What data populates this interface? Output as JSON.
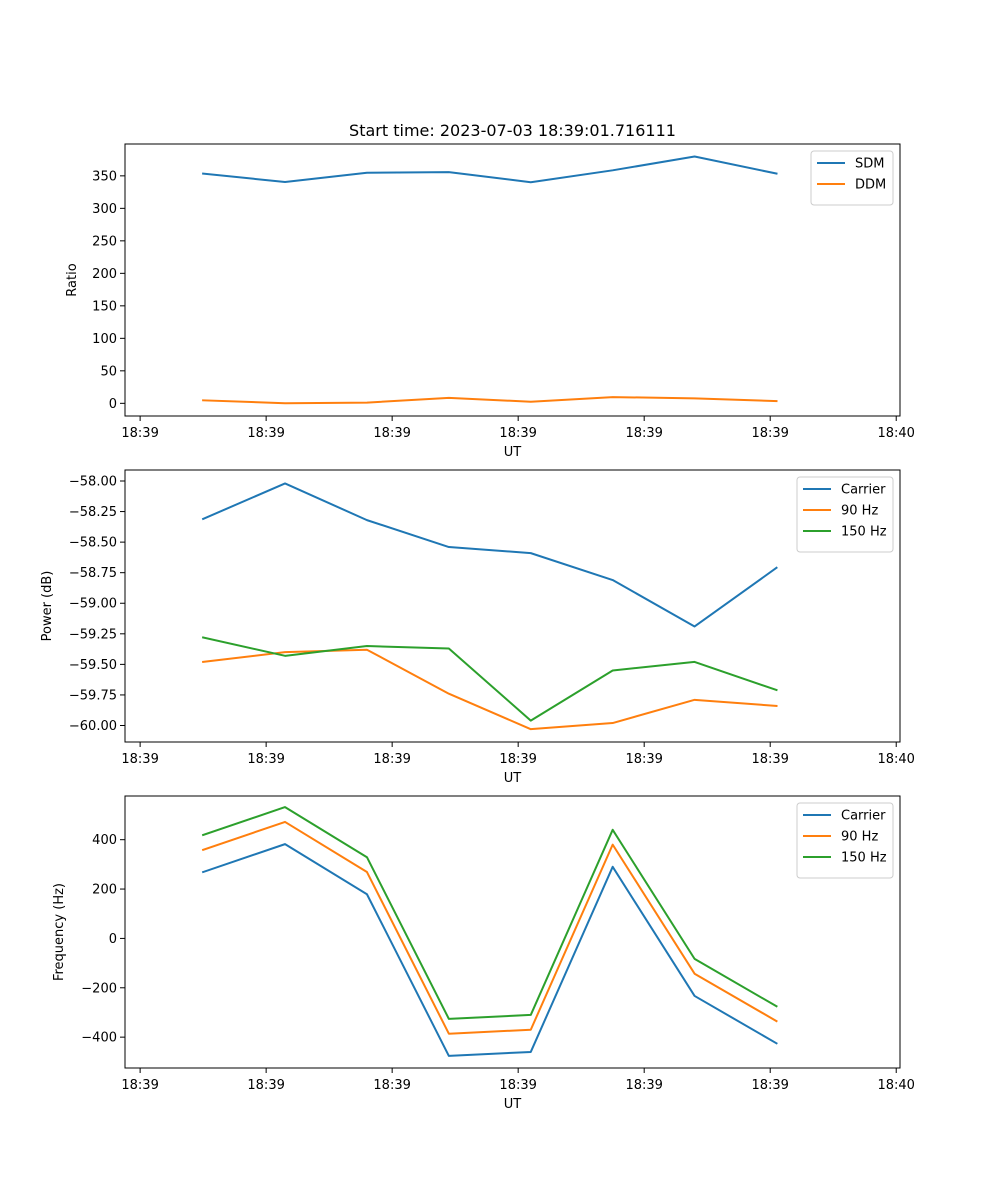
{
  "figure_title": "Start time: 2023-07-03 18:39:01.716111",
  "chart_data": [
    {
      "type": "line",
      "title": "Start time: 2023-07-03 18:39:01.716111",
      "xlabel": "UT",
      "ylabel": "Ratio",
      "x": [
        0.5,
        1.15,
        1.8,
        2.45,
        3.1,
        3.75,
        4.4,
        5.05
      ],
      "xlim": [
        -0.12,
        6.03
      ],
      "x_ticks": [
        0,
        1,
        2,
        3,
        4,
        5,
        6
      ],
      "x_tick_labels": [
        "18:39",
        "18:39",
        "18:39",
        "18:39",
        "18:39",
        "18:39",
        "18:40"
      ],
      "ylim": [
        -19.5,
        399
      ],
      "y_ticks": [
        0,
        50,
        100,
        150,
        200,
        250,
        300,
        350
      ],
      "y_tick_labels": [
        "0",
        "50",
        "100",
        "150",
        "200",
        "250",
        "300",
        "350"
      ],
      "legend_position": "upper right",
      "series": [
        {
          "name": "SDM",
          "color": "#1f77b4",
          "values": [
            353.5,
            340.5,
            354.8,
            355.8,
            340.2,
            358.5,
            379.8,
            353.5
          ]
        },
        {
          "name": "DDM",
          "color": "#ff7f0e",
          "values": [
            4.6,
            0.2,
            1.1,
            8.3,
            2.5,
            9.6,
            7.7,
            3.4
          ]
        }
      ]
    },
    {
      "type": "line",
      "title": "",
      "xlabel": "UT",
      "ylabel": "Power (dB)",
      "x": [
        0.5,
        1.15,
        1.8,
        2.45,
        3.1,
        3.75,
        4.4,
        5.05
      ],
      "xlim": [
        -0.12,
        6.03
      ],
      "x_ticks": [
        0,
        1,
        2,
        3,
        4,
        5,
        6
      ],
      "x_tick_labels": [
        "18:39",
        "18:39",
        "18:39",
        "18:39",
        "18:39",
        "18:39",
        "18:40"
      ],
      "ylim": [
        -60.135,
        -57.91
      ],
      "y_ticks": [
        -60.0,
        -59.75,
        -59.5,
        -59.25,
        -59.0,
        -58.75,
        -58.5,
        -58.25,
        -58.0
      ],
      "y_tick_labels": [
        "−60.00",
        "−59.75",
        "−59.50",
        "−59.25",
        "−59.00",
        "−58.75",
        "−58.50",
        "−58.25",
        "−58.00"
      ],
      "legend_position": "upper right",
      "series": [
        {
          "name": "Carrier",
          "color": "#1f77b4",
          "values": [
            -58.31,
            -58.02,
            -58.32,
            -58.54,
            -58.59,
            -58.81,
            -59.19,
            -58.71
          ]
        },
        {
          "name": "90 Hz",
          "color": "#ff7f0e",
          "values": [
            -59.48,
            -59.4,
            -59.38,
            -59.74,
            -60.03,
            -59.98,
            -59.79,
            -59.84
          ]
        },
        {
          "name": "150 Hz",
          "color": "#2ca02c",
          "values": [
            -59.28,
            -59.43,
            -59.35,
            -59.37,
            -59.96,
            -59.55,
            -59.48,
            -59.71
          ]
        }
      ]
    },
    {
      "type": "line",
      "title": "",
      "xlabel": "UT",
      "ylabel": "Frequency (Hz)",
      "x": [
        0.5,
        1.15,
        1.8,
        2.45,
        3.1,
        3.75,
        4.4,
        5.05
      ],
      "xlim": [
        -0.12,
        6.03
      ],
      "x_ticks": [
        0,
        1,
        2,
        3,
        4,
        5,
        6
      ],
      "x_tick_labels": [
        "18:39",
        "18:39",
        "18:39",
        "18:39",
        "18:39",
        "18:39",
        "18:40"
      ],
      "ylim": [
        -525,
        577
      ],
      "y_ticks": [
        -400,
        -200,
        0,
        200,
        400
      ],
      "y_tick_labels": [
        "−400",
        "−200",
        "0",
        "200",
        "400"
      ],
      "legend_position": "upper right",
      "series": [
        {
          "name": "Carrier",
          "color": "#1f77b4",
          "values": [
            269,
            382,
            179,
            -476,
            -460,
            290,
            -233,
            -425
          ]
        },
        {
          "name": "90 Hz",
          "color": "#ff7f0e",
          "values": [
            359,
            472,
            269,
            -386,
            -370,
            380,
            -143,
            -335
          ]
        },
        {
          "name": "150 Hz",
          "color": "#2ca02c",
          "values": [
            419,
            532,
            329,
            -326,
            -310,
            440,
            -83,
            -275
          ]
        }
      ]
    }
  ]
}
